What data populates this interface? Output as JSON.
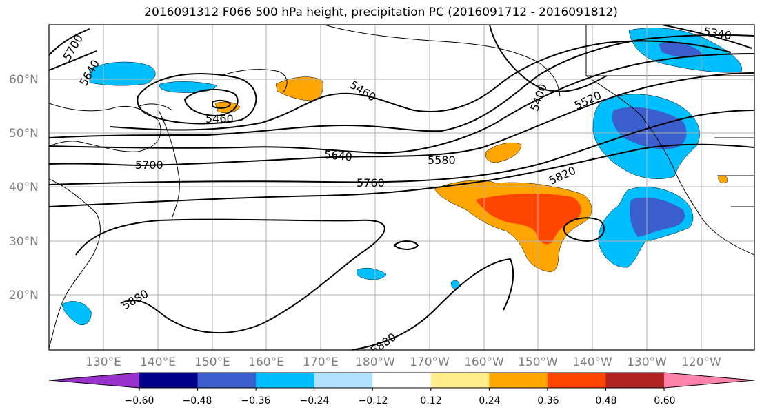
{
  "title": "2016091312 F066 500 hPa height, precipitation PC (2016091712 - 2016091812)",
  "lat_labels": [
    "60°N",
    "50°N",
    "40°N",
    "30°N",
    "20°N"
  ],
  "lon_labels": [
    "130°E",
    "140°E",
    "150°E",
    "160°E",
    "170°E",
    "180°W",
    "170°W",
    "160°W",
    "150°W",
    "140°W",
    "130°W",
    "120°W"
  ],
  "contour_labels": [
    "5700",
    "5640",
    "5460",
    "5460",
    "5400",
    "5340",
    "5520",
    "5640",
    "5580",
    "5700",
    "5760",
    "5820",
    "5880",
    "5880"
  ],
  "colorbar": {
    "tick_labels": [
      "−0.60",
      "−0.48",
      "−0.36",
      "−0.24",
      "−0.12",
      "0.12",
      "0.24",
      "0.36",
      "0.48",
      "0.60"
    ],
    "colors": [
      "#9932cc",
      "#00008b",
      "#3a5fcd",
      "#00bfff",
      "#b0e2ff",
      "#ffffff",
      "#ffec8b",
      "#ffa500",
      "#ff4500",
      "#b22222",
      "#ff82ab"
    ]
  },
  "colors": {
    "blue_dark": "#3a5fcd",
    "blue_mid": "#00bfff",
    "orange": "#ffa500",
    "red_orange": "#ff4500"
  }
}
